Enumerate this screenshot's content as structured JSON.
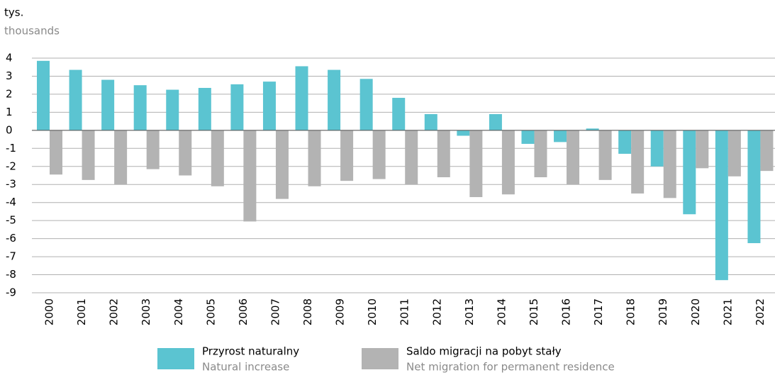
{
  "chart_data": {
    "type": "bar",
    "y_label": "tys.",
    "y_label_en": "thousands",
    "categories": [
      "2000",
      "2001",
      "2002",
      "2003",
      "2004",
      "2005",
      "2006",
      "2007",
      "2008",
      "2009",
      "2010",
      "2011",
      "2012",
      "2013",
      "2014",
      "2015",
      "2016",
      "2017",
      "2018",
      "2019",
      "2020",
      "2021",
      "2022"
    ],
    "series": [
      {
        "name": "Przyrost naturalny",
        "name_en": "Natural increase",
        "color": "#5bc4d1",
        "values": [
          3.85,
          3.35,
          2.8,
          2.5,
          2.25,
          2.35,
          2.55,
          2.7,
          3.55,
          3.35,
          2.85,
          1.8,
          0.9,
          -0.3,
          0.9,
          -0.75,
          -0.65,
          0.1,
          -1.3,
          -2.0,
          -4.65,
          -8.3,
          -6.25
        ]
      },
      {
        "name": "Saldo migracji na pobyt stały",
        "name_en": "Net migration for permanent residence",
        "color": "#b3b3b3",
        "values": [
          -2.45,
          -2.75,
          -3.0,
          -2.15,
          -2.5,
          -3.1,
          -5.05,
          -3.8,
          -3.1,
          -2.8,
          -2.7,
          -3.0,
          -2.6,
          -3.7,
          -3.55,
          -2.6,
          -3.0,
          -2.75,
          -3.5,
          -3.75,
          -2.1,
          -2.55,
          -2.25
        ]
      }
    ],
    "ylim": [
      -9,
      4
    ],
    "yticks": [
      4,
      3,
      2,
      1,
      0,
      -1,
      -2,
      -3,
      -4,
      -5,
      -6,
      -7,
      -8,
      -9
    ],
    "grid": true
  }
}
